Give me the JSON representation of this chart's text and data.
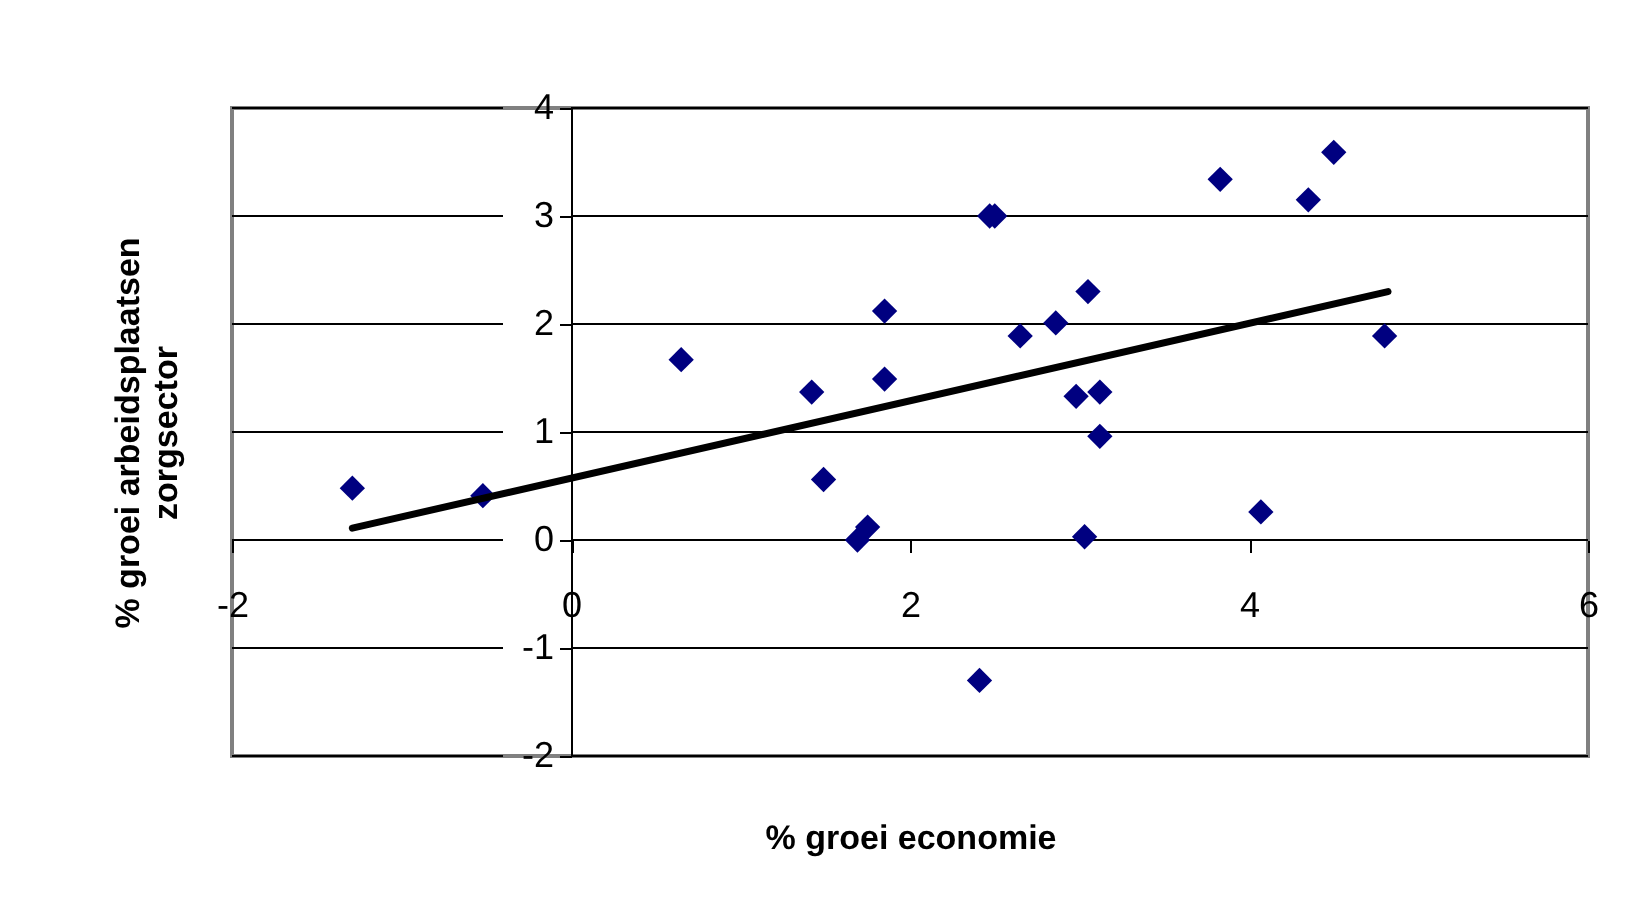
{
  "chart_data": {
    "type": "scatter",
    "xlabel": "% groei economie",
    "ylabel": "% groei arbeidsplaatsen zorgsector",
    "xlim": [
      -2,
      6
    ],
    "ylim": [
      -2,
      4
    ],
    "xticks": [
      -2,
      0,
      2,
      4,
      6
    ],
    "yticks": [
      -2,
      -1,
      0,
      1,
      2,
      3,
      4
    ],
    "grid": "y",
    "marker": "diamond",
    "series": [
      {
        "color": "#000080",
        "x": [
          -1.29,
          -0.52,
          0.65,
          1.42,
          1.49,
          1.69,
          1.75,
          1.85,
          1.85,
          2.47,
          2.5,
          2.41,
          2.65,
          2.86,
          3.05,
          2.98,
          3.12,
          3.12,
          3.03,
          3.83,
          4.07,
          4.35,
          4.5,
          4.8
        ],
        "values": [
          0.48,
          0.41,
          1.67,
          1.37,
          0.56,
          0.0,
          0.12,
          2.12,
          1.49,
          3.0,
          3.0,
          -1.3,
          1.89,
          2.01,
          2.3,
          1.33,
          1.37,
          0.96,
          0.03,
          3.34,
          0.26,
          3.15,
          3.59,
          1.89
        ]
      },
      {
        "type": "line",
        "color": "#000000",
        "marker": "none",
        "x": [
          -1.29,
          4.82
        ],
        "values": [
          0.11,
          2.3
        ]
      }
    ]
  }
}
